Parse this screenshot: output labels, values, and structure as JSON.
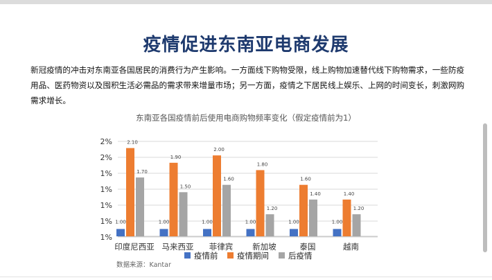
{
  "header": {
    "title": "疫情促进东南亚电商发展",
    "body": "新冠疫情的冲击对东南亚各国居民的消费行为产生影响。一方面线下购物受限，线上购物加速替代线下购物需求，一些防疫用品、医药物资以及囤积生活必需品的需求带来增量市场；另一方面，疫情之下居民线上娱乐、上网的时间变长，刺激网购需求增长。"
  },
  "chart_data": {
    "type": "bar",
    "title": "东南亚各国疫情前后使用电商购物频率变化（假定疫情前为1）",
    "categories": [
      "印度尼西亚",
      "马来西亚",
      "菲律宾",
      "新加坡",
      "泰国",
      "越南"
    ],
    "series": [
      {
        "name": "疫情前",
        "values": [
          1.0,
          1.0,
          1.0,
          1.0,
          1.0,
          1.0
        ],
        "labels": [
          "1.00",
          "1.00",
          "1.00",
          "1.00",
          "1.00",
          "1.00"
        ],
        "color": "#4472c4"
      },
      {
        "name": "疫情期间",
        "values": [
          2.1,
          1.9,
          2.0,
          1.8,
          1.6,
          1.4
        ],
        "labels": [
          "2.10",
          "1.90",
          "2.00",
          "1.80",
          "1.60",
          "1.40"
        ],
        "color": "#ed7d31"
      },
      {
        "name": "后疫情",
        "values": [
          1.7,
          1.5,
          1.6,
          1.2,
          1.4,
          1.2
        ],
        "labels": [
          "1.70",
          "1.50",
          "1.60",
          "1.20",
          "1.40",
          "1.20"
        ],
        "color": "#a5a5a5"
      }
    ],
    "y_tick_labels": [
      "1%",
      "1%",
      "1%",
      "1%",
      "1%",
      "2%",
      "2%"
    ],
    "ylim": [
      0.9,
      2.2
    ],
    "legend_position": "bottom",
    "grid": true,
    "source": "数据来源：Kantar"
  }
}
